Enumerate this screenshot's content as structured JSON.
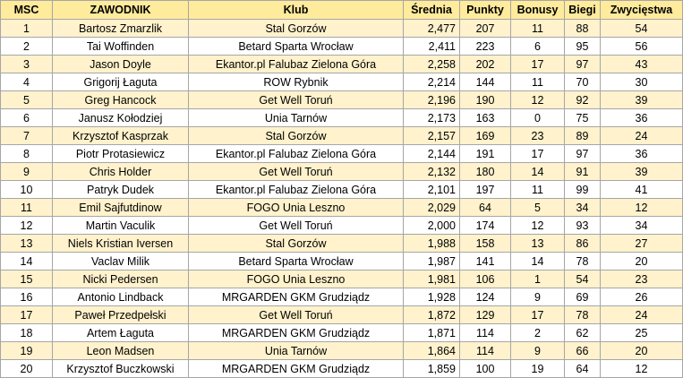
{
  "table": {
    "header": [
      "MSC",
      "ZAWODNIK",
      "Klub",
      "Średnia",
      "Punkty",
      "Bonusy",
      "Biegi",
      "Zwycięstwa"
    ],
    "rows": [
      [
        1,
        "Bartosz Zmarzlik",
        "Stal Gorzów",
        "2,477",
        207,
        11,
        88,
        54
      ],
      [
        2,
        "Tai Woffinden",
        "Betard Sparta Wrocław",
        "2,411",
        223,
        6,
        95,
        56
      ],
      [
        3,
        "Jason Doyle",
        "Ekantor.pl Falubaz Zielona Góra",
        "2,258",
        202,
        17,
        97,
        43
      ],
      [
        4,
        "Grigorij Łaguta",
        "ROW Rybnik",
        "2,214",
        144,
        11,
        70,
        30
      ],
      [
        5,
        "Greg Hancock",
        "Get Well Toruń",
        "2,196",
        190,
        12,
        92,
        39
      ],
      [
        6,
        "Janusz Kołodziej",
        "Unia Tarnów",
        "2,173",
        163,
        0,
        75,
        36
      ],
      [
        7,
        "Krzysztof Kasprzak",
        "Stal Gorzów",
        "2,157",
        169,
        23,
        89,
        24
      ],
      [
        8,
        "Piotr Protasiewicz",
        "Ekantor.pl Falubaz Zielona Góra",
        "2,144",
        191,
        17,
        97,
        36
      ],
      [
        9,
        "Chris Holder",
        "Get Well Toruń",
        "2,132",
        180,
        14,
        91,
        39
      ],
      [
        10,
        "Patryk Dudek",
        "Ekantor.pl Falubaz Zielona Góra",
        "2,101",
        197,
        11,
        99,
        41
      ],
      [
        11,
        "Emil Sajfutdinow",
        "FOGO Unia Leszno",
        "2,029",
        64,
        5,
        34,
        12
      ],
      [
        12,
        "Martin Vaculik",
        "Get Well Toruń",
        "2,000",
        174,
        12,
        93,
        34
      ],
      [
        13,
        "Niels Kristian Iversen",
        "Stal Gorzów",
        "1,988",
        158,
        13,
        86,
        27
      ],
      [
        14,
        "Vaclav Milik",
        "Betard Sparta Wrocław",
        "1,987",
        141,
        14,
        78,
        20
      ],
      [
        15,
        "Nicki Pedersen",
        "FOGO Unia Leszno",
        "1,981",
        106,
        1,
        54,
        23
      ],
      [
        16,
        "Antonio Lindback",
        "MRGARDEN GKM Grudziądz",
        "1,928",
        124,
        9,
        69,
        26
      ],
      [
        17,
        "Paweł Przedpełski",
        "Get Well Toruń",
        "1,872",
        129,
        17,
        78,
        24
      ],
      [
        18,
        "Artem Łaguta",
        "MRGARDEN GKM Grudziądz",
        "1,871",
        114,
        2,
        62,
        25
      ],
      [
        19,
        "Leon Madsen",
        "Unia Tarnów",
        "1,864",
        114,
        9,
        66,
        20
      ],
      [
        20,
        "Krzysztof Buczkowski",
        "MRGARDEN GKM Grudziądz",
        "1,859",
        100,
        19,
        64,
        12
      ]
    ]
  }
}
